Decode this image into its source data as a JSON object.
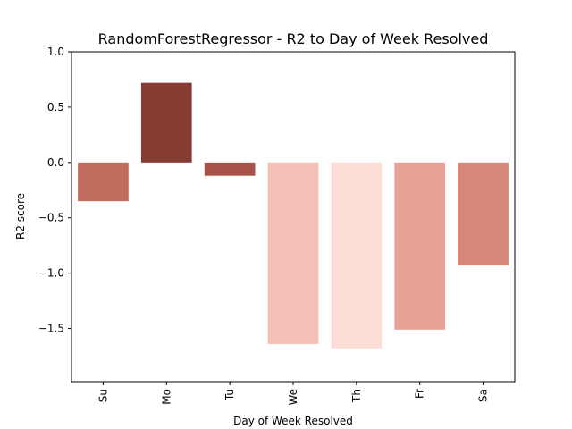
{
  "chart_data": {
    "type": "bar",
    "title": "RandomForestRegressor - R2 to Day of Week Resolved",
    "xlabel": "Day of Week Resolved",
    "ylabel": "R2 score",
    "categories": [
      "Su",
      "Mo",
      "Tu",
      "We",
      "Th",
      "Fr",
      "Sa"
    ],
    "values": [
      -0.35,
      0.72,
      -0.12,
      -1.64,
      -1.68,
      -1.51,
      -0.93
    ],
    "bar_colors": [
      "#c06d5e",
      "#863b33",
      "#a65248",
      "#f4bfb5",
      "#f9ddd6",
      "#e8a398",
      "#d6887a"
    ],
    "ylim": [
      -1.98,
      1.0
    ],
    "yticks": [
      1.0,
      0.5,
      0.0,
      -0.5,
      -1.0,
      -1.5
    ],
    "ytick_labels": [
      "1.0",
      "0.5",
      "0.0",
      "−0.5",
      "−1.0",
      "−1.5"
    ],
    "grid": false,
    "legend": "none"
  }
}
